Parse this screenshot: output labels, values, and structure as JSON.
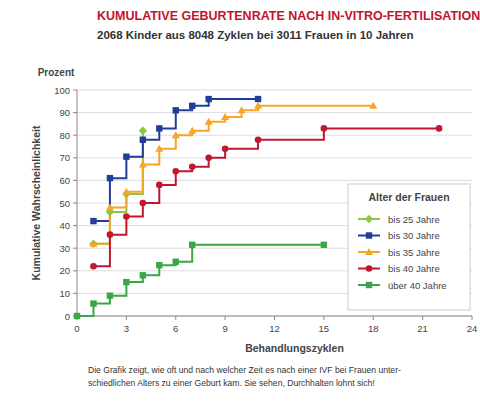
{
  "chart_data": {
    "type": "line",
    "title": "KUMULATIVE GEBURTENRATE NACH IN-VITRO-FERTILISATION",
    "subtitle": "2068 Kinder aus 8048 Zyklen bei 3011 Frauen in 10 Jahren",
    "y_unit_label": "Prozent",
    "y_label": "Kumulative Wahrscheinlichkeit",
    "x_label": "Behandlungszyklen",
    "legend_title": "Alter der Frauen",
    "caption": [
      "Die Grafik zeigt, wie oft und nach welcher Zeit es nach einer IVF bei Frauen unter-",
      "schiedlichen Alters zu einer Geburt kam. Sie sehen, Durchhalten lohnt sich!"
    ],
    "xlim": [
      0,
      24
    ],
    "xticks": [
      0,
      3,
      6,
      9,
      12,
      15,
      18,
      21,
      24
    ],
    "ylim": [
      0,
      100
    ],
    "yticks": [
      0,
      10,
      20,
      30,
      40,
      50,
      60,
      70,
      80,
      90,
      100
    ],
    "grid": true,
    "legend": "right",
    "line_style": "step",
    "series": [
      {
        "name": "bis 25 Jahre",
        "color": "#8dc63f",
        "marker": "diamond",
        "x": [
          1,
          2,
          3,
          4
        ],
        "values": [
          32,
          46,
          54,
          82
        ]
      },
      {
        "name": "bis 30 Jahre",
        "color": "#1f3d99",
        "marker": "square",
        "x": [
          1,
          2,
          3,
          4,
          5,
          6,
          7,
          8,
          11
        ],
        "values": [
          42,
          61,
          70.5,
          78,
          83,
          91,
          93,
          96,
          96
        ]
      },
      {
        "name": "bis 35 Jahre",
        "color": "#f5a623",
        "marker": "triangle",
        "x": [
          1,
          2,
          3,
          4,
          5,
          6,
          7,
          8,
          9,
          10,
          11,
          18
        ],
        "values": [
          32,
          48,
          55,
          67,
          74,
          80,
          82,
          86,
          88,
          91,
          93,
          93
        ]
      },
      {
        "name": "bis 40 Jahre",
        "color": "#c0172f",
        "marker": "circle",
        "x": [
          1,
          2,
          3,
          4,
          5,
          6,
          7,
          8,
          9,
          11,
          15,
          22
        ],
        "values": [
          22,
          36,
          44,
          50,
          58,
          64,
          66,
          70,
          74,
          78,
          83,
          83
        ]
      },
      {
        "name": "über 40 Jahre",
        "color": "#3aa648",
        "marker": "square",
        "x": [
          0,
          1,
          2,
          3,
          4,
          5,
          6,
          7,
          15
        ],
        "values": [
          0,
          5.5,
          9,
          15,
          18,
          22.5,
          24,
          31.5,
          31.5
        ]
      }
    ]
  }
}
